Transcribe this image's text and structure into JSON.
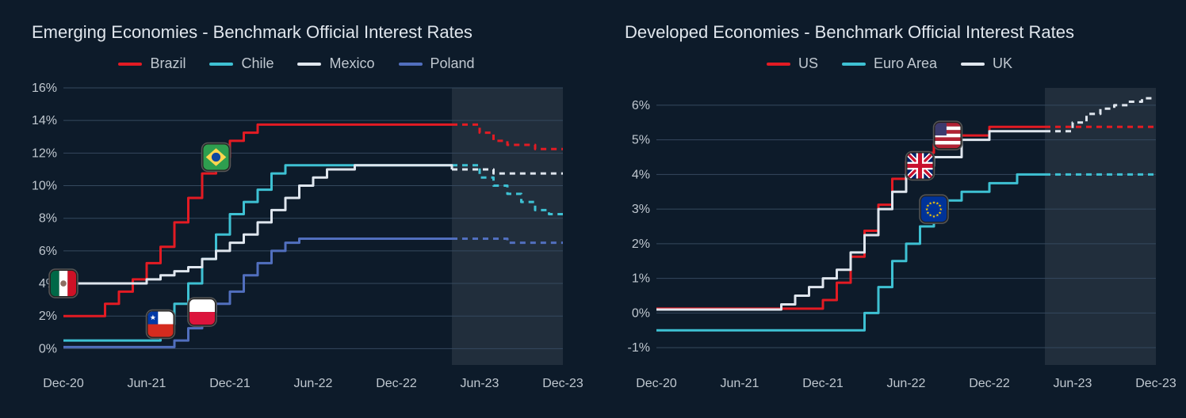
{
  "background_color": "#0d1b2a",
  "grid_color": "#35495e",
  "axis_text_color": "#c0c8d0",
  "title_color": "#e0e6ed",
  "shade_color": "rgba(180,190,200,0.12)",
  "title_fontsize": 22,
  "axis_fontsize": 16,
  "legend_fontsize": 18,
  "line_width": 3,
  "dash_pattern": "7,6",
  "x_labels": [
    "Dec-20",
    "Jun-21",
    "Dec-21",
    "Jun-22",
    "Dec-22",
    "Jun-23",
    "Dec-23"
  ],
  "panels": [
    {
      "id": "emerging",
      "title": "Emerging Economies - Benchmark Official Interest Rates",
      "ylim": [
        -1,
        16
      ],
      "ytick_start": 0,
      "ytick_step": 2,
      "ytick_end": 16,
      "shade_from_x": 28,
      "series": [
        {
          "name": "Brazil",
          "color": "#e31b23",
          "flag_bg": "#2e7d32",
          "flag_accent": "#ffd54f",
          "flag_center": "#0d47a1",
          "flag_type": "brazil",
          "marker_x": 11,
          "solid": [
            2.0,
            2.0,
            2.0,
            2.75,
            3.5,
            4.25,
            5.25,
            6.25,
            7.75,
            9.25,
            10.75,
            11.75,
            12.75,
            13.25,
            13.75,
            13.75,
            13.75,
            13.75,
            13.75,
            13.75,
            13.75,
            13.75,
            13.75,
            13.75,
            13.75,
            13.75,
            13.75,
            13.75,
            13.75
          ],
          "forecast": [
            13.75,
            13.25,
            12.75,
            12.5,
            12.5,
            12.25,
            12.25,
            12.25
          ]
        },
        {
          "name": "Chile",
          "color": "#3ec1d3",
          "flag_bg": "#ffffff",
          "flag_type": "chile",
          "marker_x": 7,
          "solid": [
            0.5,
            0.5,
            0.5,
            0.5,
            0.5,
            0.5,
            0.5,
            1.5,
            2.75,
            4.0,
            5.5,
            7.0,
            8.25,
            9.0,
            9.75,
            10.75,
            11.25,
            11.25,
            11.25,
            11.25,
            11.25,
            11.25,
            11.25,
            11.25,
            11.25,
            11.25,
            11.25,
            11.25,
            11.25
          ],
          "forecast": [
            11.25,
            10.5,
            10.0,
            9.5,
            9.0,
            8.5,
            8.25,
            8.25
          ]
        },
        {
          "name": "Mexico",
          "color": "#dfe6ee",
          "flag_type": "mexico",
          "marker_x": 0,
          "solid": [
            4.0,
            4.0,
            4.0,
            4.0,
            4.0,
            4.0,
            4.25,
            4.5,
            4.75,
            5.0,
            5.5,
            6.0,
            6.5,
            7.0,
            7.75,
            8.5,
            9.25,
            10.0,
            10.5,
            11.0,
            11.0,
            11.25,
            11.25,
            11.25,
            11.25,
            11.25,
            11.25,
            11.25,
            11.0
          ],
          "forecast": [
            11.0,
            11.0,
            10.75,
            10.75,
            10.75,
            10.75,
            10.75,
            10.75
          ]
        },
        {
          "name": "Poland",
          "color": "#516fbe",
          "flag_type": "poland",
          "marker_x": 10,
          "solid": [
            0.1,
            0.1,
            0.1,
            0.1,
            0.1,
            0.1,
            0.1,
            0.1,
            0.5,
            1.25,
            2.25,
            2.75,
            3.5,
            4.5,
            5.25,
            6.0,
            6.5,
            6.75,
            6.75,
            6.75,
            6.75,
            6.75,
            6.75,
            6.75,
            6.75,
            6.75,
            6.75,
            6.75,
            6.75
          ],
          "forecast": [
            6.75,
            6.75,
            6.75,
            6.5,
            6.5,
            6.5,
            6.5,
            6.5
          ]
        }
      ]
    },
    {
      "id": "developed",
      "title": "Developed Economies - Benchmark Official Interest Rates",
      "ylim": [
        -1.5,
        6.5
      ],
      "ytick_start": -1,
      "ytick_step": 1,
      "ytick_end": 6,
      "shade_from_x": 28,
      "series": [
        {
          "name": "US",
          "color": "#e31b23",
          "flag_type": "us",
          "marker_x": 21,
          "solid": [
            0.125,
            0.125,
            0.125,
            0.125,
            0.125,
            0.125,
            0.125,
            0.125,
            0.125,
            0.125,
            0.125,
            0.125,
            0.375,
            0.875,
            1.625,
            2.375,
            3.125,
            3.875,
            4.375,
            4.625,
            4.875,
            5.125,
            5.125,
            5.125,
            5.375,
            5.375,
            5.375,
            5.375,
            5.375
          ],
          "forecast": [
            5.375,
            5.375,
            5.375,
            5.375,
            5.375,
            5.375,
            5.375,
            5.375
          ]
        },
        {
          "name": "Euro Area",
          "color": "#3ec1d3",
          "flag_type": "eu",
          "marker_x": 20,
          "solid": [
            -0.5,
            -0.5,
            -0.5,
            -0.5,
            -0.5,
            -0.5,
            -0.5,
            -0.5,
            -0.5,
            -0.5,
            -0.5,
            -0.5,
            -0.5,
            -0.5,
            -0.5,
            0.0,
            0.75,
            1.5,
            2.0,
            2.5,
            3.0,
            3.25,
            3.5,
            3.5,
            3.75,
            3.75,
            4.0,
            4.0,
            4.0
          ],
          "forecast": [
            4.0,
            4.0,
            4.0,
            4.0,
            4.0,
            4.0,
            4.0,
            4.0
          ]
        },
        {
          "name": "UK",
          "color": "#dfe6ee",
          "flag_type": "uk",
          "marker_x": 19,
          "solid": [
            0.1,
            0.1,
            0.1,
            0.1,
            0.1,
            0.1,
            0.1,
            0.1,
            0.1,
            0.25,
            0.5,
            0.75,
            1.0,
            1.25,
            1.75,
            2.25,
            3.0,
            3.5,
            4.0,
            4.25,
            4.5,
            4.5,
            5.0,
            5.0,
            5.25,
            5.25,
            5.25,
            5.25,
            5.25
          ],
          "forecast": [
            5.25,
            5.5,
            5.75,
            5.9,
            6.0,
            6.1,
            6.2,
            6.2
          ]
        }
      ]
    }
  ]
}
